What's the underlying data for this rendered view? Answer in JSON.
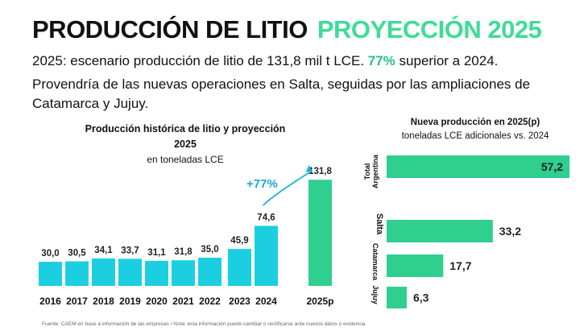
{
  "header": {
    "title_main": "PRODUCCIÓN DE LITIO",
    "title_accent": "PROYECCIÓN 2025",
    "line1_pre": "2025: escenario producción de litio de 131,8 mil t LCE.",
    "line1_highlight": "77%",
    "line1_post": "superior a 2024.",
    "paragraph": "Provendría de las nuevas operaciones en Salta, seguidas por las ampliaciones de Catamarca y Jujuy."
  },
  "colors": {
    "bar_historic": "#1ccfe0",
    "bar_projection": "#2fcf8f",
    "bar_new": "#2fcf8f",
    "accent_text": "#2bbf86",
    "arrow": "#1ab3d6",
    "growth_label": "#1aa9d8"
  },
  "left_chart": {
    "title_line1": "Producción histórica de litio y proyección",
    "title_line2": "2025",
    "subtitle": "en toneladas LCE",
    "growth_label": "+77%"
  },
  "right_chart": {
    "title": "Nueva producción en 2025(p)",
    "subtitle": "toneladas LCE adicionales vs. 2024"
  },
  "footnote": "Fuente: CAEM en base a información de las empresas / Nota: esta información puede cambiar o rectificarse ante nuevos datos o evidencia",
  "chart_data": [
    {
      "type": "bar",
      "title": "Producción histórica de litio y proyección 2025",
      "subtitle": "en toneladas LCE",
      "categories": [
        "2016",
        "2017",
        "2018",
        "2019",
        "2020",
        "2021",
        "2022",
        "2023",
        "2024",
        "2025p"
      ],
      "values": [
        30.0,
        30.5,
        34.1,
        33.7,
        31.1,
        31.8,
        35.0,
        45.9,
        74.6,
        131.8
      ],
      "labels": [
        "30,0",
        "30,5",
        "34,1",
        "33,7",
        "31,1",
        "31,8",
        "35,0",
        "45,9",
        "74,6",
        "131,8"
      ],
      "projected": [
        false,
        false,
        false,
        false,
        false,
        false,
        false,
        false,
        false,
        true
      ],
      "annotation": "+77%",
      "ylim": [
        0,
        140
      ],
      "grid": false
    },
    {
      "type": "bar",
      "orientation": "horizontal",
      "title": "Nueva producción en 2025(p)",
      "subtitle": "toneladas LCE adicionales vs. 2024",
      "categories": [
        "Total Argentina",
        "Salta",
        "Catamarca",
        "Jujuy"
      ],
      "category_lines": [
        [
          "Total",
          "Argentina"
        ],
        [
          "Salta"
        ],
        [
          "Catamarca"
        ],
        [
          "Jujuy"
        ]
      ],
      "values": [
        57.2,
        33.2,
        17.7,
        6.3
      ],
      "labels": [
        "57,2",
        "33,2",
        "17,7",
        "6,3"
      ],
      "xlim": [
        0,
        60
      ],
      "grid": false
    }
  ]
}
